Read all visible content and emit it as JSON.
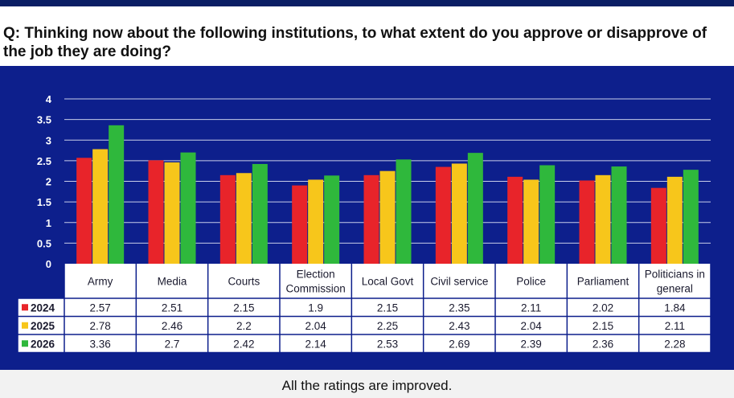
{
  "question": "Q: Thinking now about the following institutions, to what extent do you approve or disapprove of the job they are doing?",
  "caption": "All the ratings are improved.",
  "colors": {
    "panel": "#0d1f8c",
    "gridline": "#c8cde8"
  },
  "chart_data": {
    "type": "bar",
    "categories": [
      "Army",
      "Media",
      "Courts",
      "Election Commission",
      "Local Govt",
      "Civil service",
      "Police",
      "Parliament",
      "Politicians in general"
    ],
    "series": [
      {
        "name": "2024",
        "color": "#e8242a",
        "values": [
          2.57,
          2.51,
          2.15,
          1.9,
          2.15,
          2.35,
          2.11,
          2.02,
          1.84
        ]
      },
      {
        "name": "2025",
        "color": "#f7c61b",
        "values": [
          2.78,
          2.46,
          2.2,
          2.04,
          2.25,
          2.43,
          2.04,
          2.15,
          2.11
        ]
      },
      {
        "name": "2026",
        "color": "#2fb83c",
        "values": [
          3.36,
          2.7,
          2.42,
          2.14,
          2.53,
          2.69,
          2.39,
          2.36,
          2.28
        ]
      }
    ],
    "yticks": [
      "0",
      "0.5",
      "1",
      "1.5",
      "2",
      "2.5",
      "3",
      "3.5",
      "4"
    ],
    "ylim": [
      0,
      4
    ],
    "grid": true,
    "legend": "data-table"
  }
}
